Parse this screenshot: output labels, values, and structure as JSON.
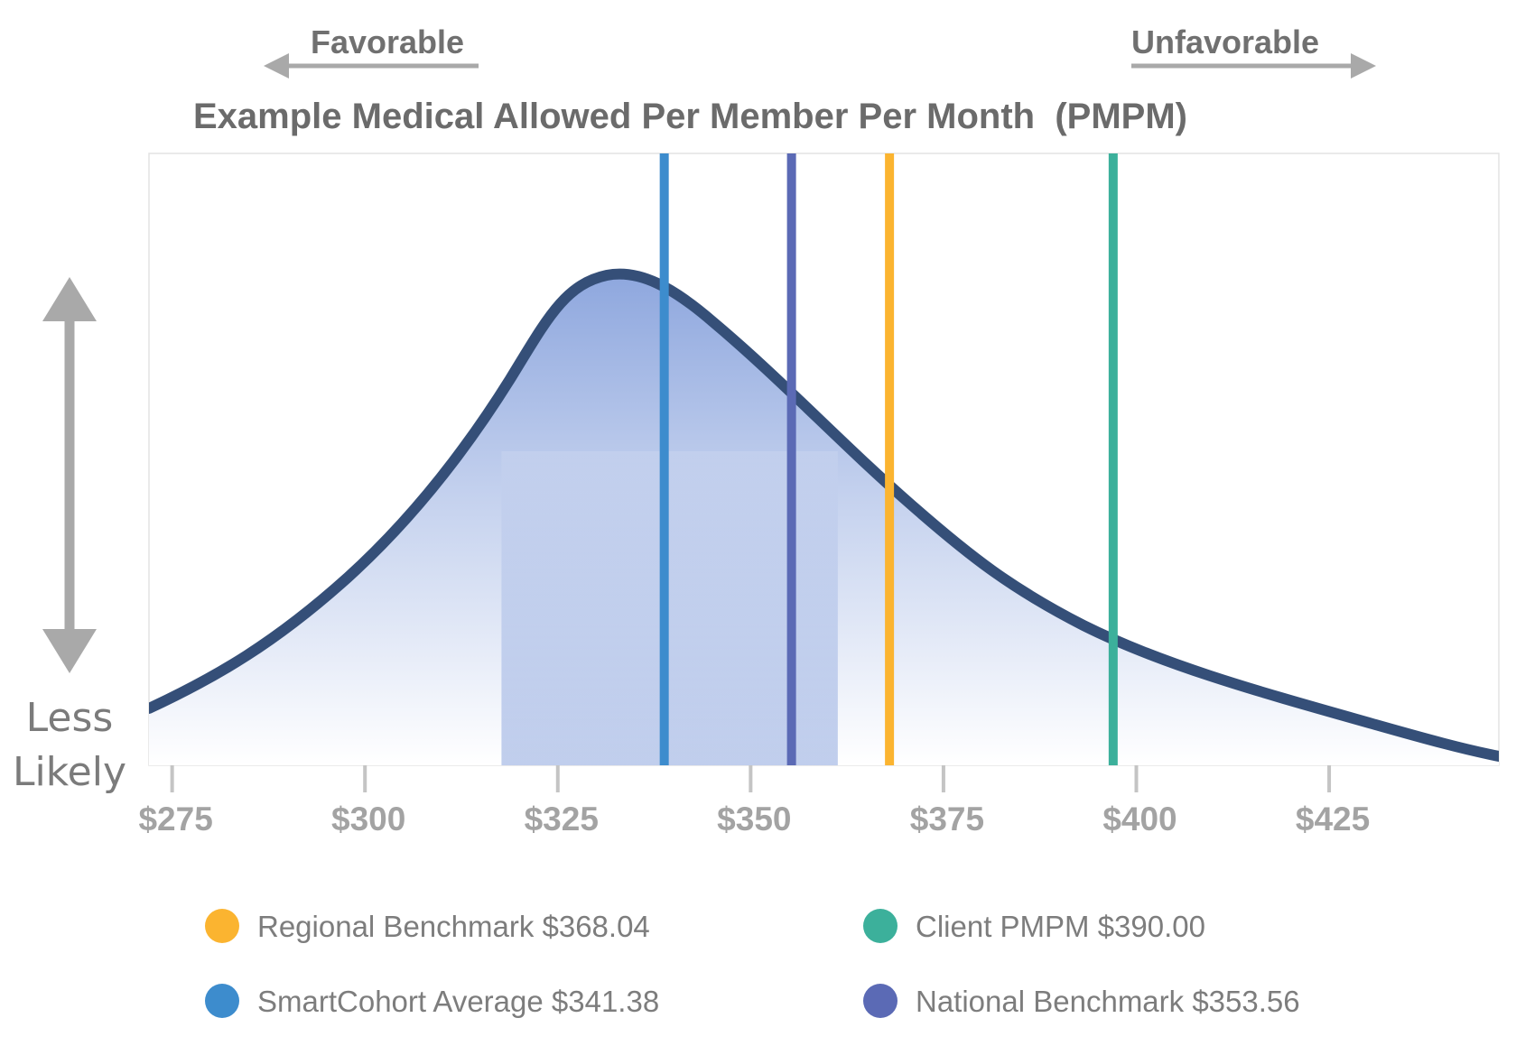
{
  "header": {
    "favorable_label": "Favorable",
    "unfavorable_label": "Unfavorable"
  },
  "axis_side": {
    "less_likely_line1": "Less",
    "less_likely_line2": "Likely"
  },
  "colors": {
    "curve": "#354f78",
    "fill_light": "#eef1fa",
    "fill_dark": "#8ea7de",
    "arrow": "#a9a9a9",
    "regional": "#fbb430",
    "client": "#3cb09b",
    "smartcohort": "#3d8ccd",
    "national": "#5b6ab5"
  },
  "chart_data": {
    "type": "area",
    "title": "Example Medical Allowed Per Member Per Month  (PMPM)",
    "xlabel": "",
    "ylabel": "",
    "xlim": [
      272,
      447
    ],
    "x_ticks": [
      275,
      300,
      325,
      350,
      375,
      400,
      425
    ],
    "x_tick_labels": [
      "$275",
      "$300",
      "$325",
      "$350",
      "$375",
      "$400",
      "$425"
    ],
    "grid": false,
    "distribution_peak": 329,
    "highlight_range": [
      317.7,
      361.3
    ],
    "markers": [
      {
        "name": "Regional Benchmark",
        "value": 368.04,
        "label": "Regional Benchmark $368.04",
        "color": "#fbb430",
        "line_x": 368.0
      },
      {
        "name": "Client PMPM",
        "value": 390.0,
        "label": "Client PMPM $390.00",
        "color": "#3cb09b",
        "line_x": 397.0
      },
      {
        "name": "SmartCohort Average",
        "value": 341.38,
        "label": "SmartCohort Average $341.38",
        "color": "#3d8ccd",
        "line_x": 338.8
      },
      {
        "name": "National Benchmark",
        "value": 353.56,
        "label": "National Benchmark $353.56",
        "color": "#5b6ab5",
        "line_x": 355.3
      }
    ],
    "legend_placement": "bottom"
  }
}
